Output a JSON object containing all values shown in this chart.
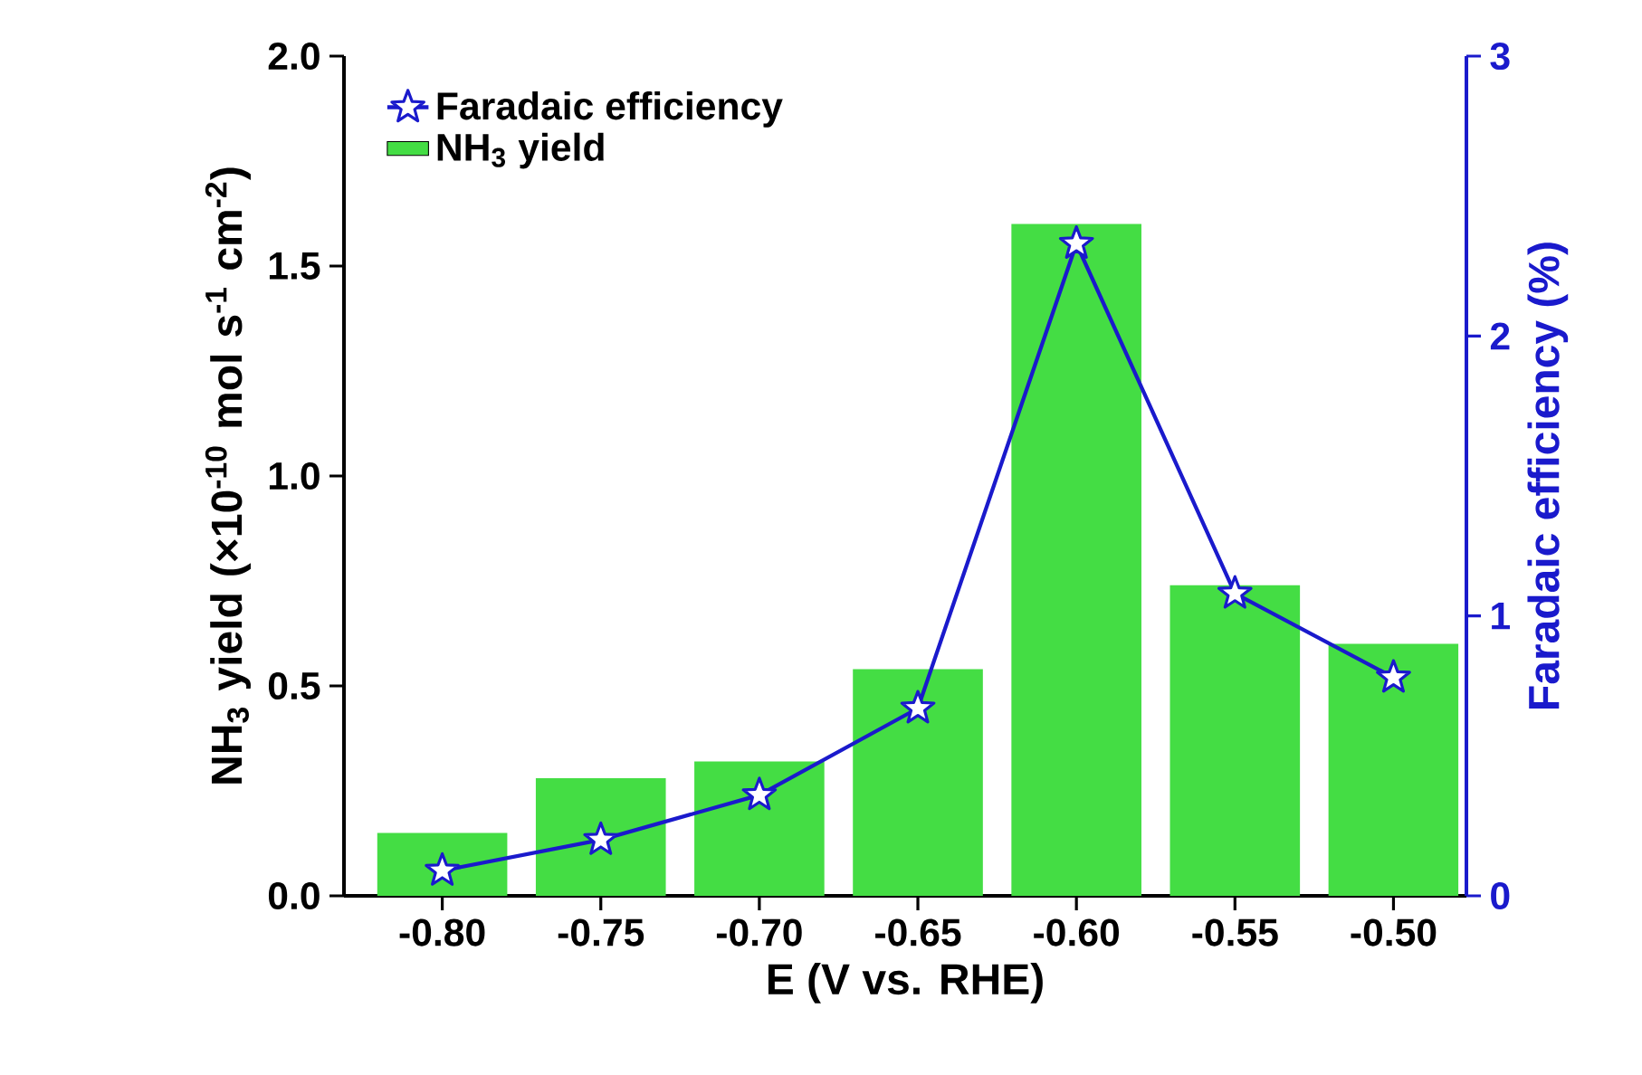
{
  "chart_data": {
    "type": "bar",
    "xlabel": "E (V vs. RHE)",
    "ylabel": "NH$_{3}$ yield (×10$^{-10}$ mol s$^{-1}$ cm$^{-2}$)",
    "y2label": "Faradaic efficiency (%)",
    "categories": [
      "-0.80",
      "-0.75",
      "-0.70",
      "-0.65",
      "-0.60",
      "-0.55",
      "-0.50"
    ],
    "series": [
      {
        "name": "Faradaic efficiency",
        "type": "line",
        "axis": "y2",
        "color": "#1a1acc",
        "marker": "star",
        "values": [
          0.09,
          0.2,
          0.36,
          0.67,
          2.33,
          1.08,
          0.78
        ]
      },
      {
        "name": "NH$_{3}$ yield",
        "color": "#44dd44",
        "values": [
          0.15,
          0.28,
          0.32,
          0.54,
          1.6,
          0.74,
          0.6
        ]
      }
    ],
    "ylim": [
      0,
      2.0
    ],
    "yticks": [
      {
        "value": 0,
        "label": "0.0"
      },
      {
        "value": 0.5,
        "label": "0.5"
      },
      {
        "value": 1.0,
        "label": "1.0"
      },
      {
        "value": 1.5,
        "label": "1.5"
      },
      {
        "value": 2.0,
        "label": "2.0"
      }
    ],
    "y2lim": [
      0,
      3
    ],
    "y2ticks": [
      0,
      1,
      2,
      3
    ],
    "legend": "top left",
    "grid": false
  }
}
